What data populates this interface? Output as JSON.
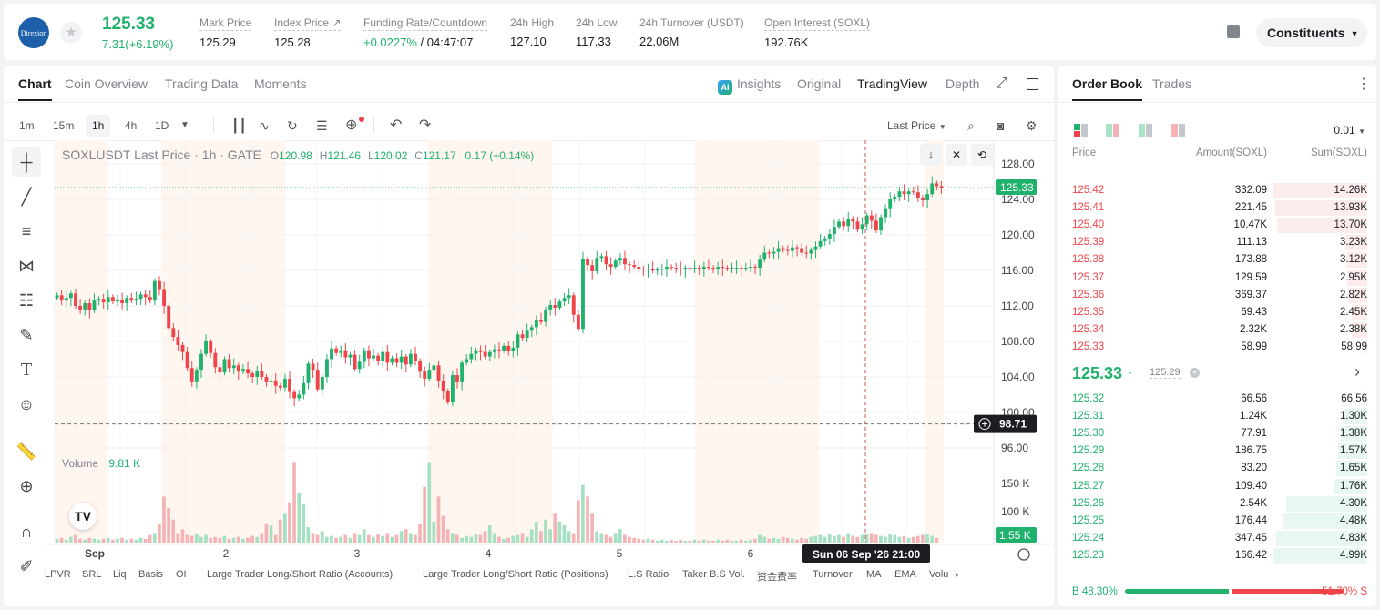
{
  "header": {
    "logo_text": "Direxion",
    "price": "125.33",
    "change": "7.31(+6.19%)",
    "stats": [
      {
        "label": "Mark Price",
        "value": "125.29"
      },
      {
        "label": "Index Price ↗",
        "value": "125.28"
      },
      {
        "label": "Funding Rate/Countdown",
        "value": "+0.0227%",
        "value2": "/ 04:47:07"
      },
      {
        "label": "24h High",
        "value": "127.10"
      },
      {
        "label": "24h Low",
        "value": "117.33"
      },
      {
        "label": "24h Turnover (USDT)",
        "value": "22.06M"
      },
      {
        "label": "Open Interest (SOXL)",
        "value": "192.76K"
      }
    ],
    "constituents_label": "Constituents"
  },
  "chart_panel": {
    "tabs": [
      "Chart",
      "Coin Overview",
      "Trading Data",
      "Moments"
    ],
    "right_tabs": [
      "Insights",
      "Original",
      "TradingView",
      "Depth"
    ],
    "ai_badge": "AI",
    "timeframes": [
      "1m",
      "15m",
      "1h",
      "4h",
      "1D"
    ],
    "active_timeframe": "1h",
    "price_type": "Last Price",
    "legend": {
      "symbol": "SOXLUSDT Last Price · 1h · GATE",
      "o_label": "O",
      "o": "120.98",
      "h_label": "H",
      "h": "121.46",
      "l_label": "L",
      "l": "120.02",
      "c_label": "C",
      "c": "121.17",
      "chg": "0.17 (+0.14%)"
    },
    "volume_label": "Volume",
    "volume_value": "9.81 K",
    "indicators": [
      "LPVR",
      "SRL",
      "Liq",
      "Basis",
      "OI",
      "Large Trader Long/Short Ratio (Accounts)",
      "Large Trader Long/Short Ratio (Positions)",
      "L.S Ratio",
      "Taker B.S Vol.",
      "资金费率",
      "Turnover",
      "MA",
      "EMA",
      "Volu"
    ]
  },
  "chart_data": {
    "type": "candlestick",
    "price_axis": [
      "128.00",
      "124.00",
      "120.00",
      "116.00",
      "112.00",
      "108.00",
      "104.00",
      "100.00",
      "96.00"
    ],
    "volume_axis": [
      "150 K",
      "100 K",
      "50 K"
    ],
    "x_ticks": [
      "Sep",
      "2",
      "3",
      "4",
      "5",
      "6"
    ],
    "last_price_tag": "125.33",
    "crosshair_price_tag": "98.71",
    "volume_tag": "1.55 K",
    "crosshair_time": "Sun 06 Sep '26   21:00",
    "ylim": [
      96,
      130
    ],
    "closes": [
      113.2,
      112.6,
      112.9,
      113.4,
      112.0,
      111.6,
      112.3,
      111.5,
      112.6,
      112.8,
      112.4,
      113.0,
      112.5,
      112.7,
      112.3,
      112.9,
      112.6,
      112.8,
      113.3,
      113.0,
      112.6,
      114.8,
      113.9,
      112.0,
      109.5,
      108.5,
      107.6,
      106.8,
      105.0,
      103.4,
      104.8,
      106.6,
      108.0,
      106.7,
      105.1,
      104.5,
      106.0,
      105.0,
      105.3,
      104.6,
      104.9,
      104.4,
      104.0,
      104.7,
      104.0,
      103.4,
      103.6,
      103.0,
      102.8,
      103.8,
      102.3,
      101.6,
      102.0,
      103.3,
      105.5,
      104.8,
      102.6,
      104.0,
      106.0,
      107.2,
      106.7,
      107.0,
      106.2,
      106.5,
      104.9,
      105.7,
      107.0,
      106.1,
      106.4,
      105.8,
      106.8,
      105.6,
      106.1,
      105.6,
      106.3,
      105.4,
      106.6,
      105.8,
      104.6,
      103.8,
      104.8,
      105.3,
      103.5,
      102.4,
      101.2,
      104.2,
      103.4,
      105.6,
      106.0,
      106.6,
      107.0,
      106.8,
      106.3,
      106.8,
      107.1,
      107.0,
      107.5,
      106.9,
      107.3,
      108.8,
      108.4,
      109.2,
      109.6,
      110.4,
      110.2,
      111.6,
      112.1,
      111.8,
      112.5,
      112.9,
      113.2,
      111.0,
      109.4,
      117.3,
      116.6,
      115.9,
      117.4,
      117.6,
      116.7,
      116.4,
      117.1,
      117.4,
      116.7,
      116.6,
      116.4,
      116.2,
      116.1,
      116.2,
      116.0,
      116.1,
      116.2,
      116.4,
      116.3,
      116.2,
      116.1,
      116.3,
      116.2,
      116.3,
      116.2,
      116.4,
      116.3,
      116.2,
      116.4,
      116.3,
      116.2,
      116.3,
      116.3,
      116.2,
      116.3,
      116.4,
      116.3,
      117.2,
      118.0,
      117.9,
      118.1,
      118.5,
      118.3,
      118.2,
      118.6,
      118.5,
      118.0,
      117.9,
      118.3,
      118.7,
      119.3,
      119.6,
      120.1,
      120.9,
      121.5,
      121.0,
      121.8,
      121.5,
      120.6,
      121.2,
      122.2,
      121.6,
      120.5,
      122.0,
      122.9,
      124.0,
      124.3,
      124.9,
      124.6,
      124.9,
      124.8,
      124.2,
      123.9,
      124.6,
      125.8,
      125.5,
      125.33
    ],
    "volumes": [
      4,
      5,
      3,
      6,
      8,
      4,
      3,
      5,
      4,
      3,
      4,
      5,
      3,
      4,
      5,
      3,
      4,
      3,
      5,
      4,
      8,
      10,
      20,
      48,
      36,
      24,
      10,
      14,
      8,
      7,
      9,
      6,
      8,
      5,
      6,
      5,
      7,
      4,
      5,
      6,
      4,
      5,
      7,
      6,
      10,
      20,
      18,
      8,
      24,
      30,
      42,
      84,
      52,
      40,
      16,
      10,
      8,
      12,
      6,
      7,
      5,
      6,
      8,
      5,
      10,
      8,
      14,
      8,
      6,
      9,
      7,
      10,
      6,
      8,
      12,
      14,
      10,
      8,
      20,
      58,
      84,
      22,
      48,
      28,
      14,
      10,
      8,
      5,
      7,
      6,
      9,
      8,
      12,
      18,
      10,
      6,
      4,
      5,
      7,
      8,
      10,
      6,
      14,
      22,
      12,
      24,
      14,
      30,
      22,
      18,
      12,
      10,
      44,
      60,
      48,
      30,
      12,
      10,
      8,
      6,
      10,
      14,
      8,
      6,
      5,
      4,
      3,
      4,
      3,
      2,
      3,
      2,
      3,
      2,
      3,
      2,
      2,
      3,
      2,
      3,
      2,
      2,
      3,
      2,
      3,
      2,
      2,
      3,
      2,
      3,
      4,
      8,
      6,
      4,
      5,
      4,
      6,
      5,
      4,
      3,
      5,
      4,
      6,
      7,
      8,
      6,
      9,
      7,
      8,
      6,
      10,
      7,
      6,
      8,
      9,
      10,
      8,
      7,
      6,
      9,
      8,
      6,
      7,
      5,
      6,
      7,
      8,
      9,
      7,
      5
    ]
  },
  "orderbook": {
    "tabs": [
      "Order Book",
      "Trades"
    ],
    "precision": "0.01",
    "headers": [
      "Price",
      "Amount(SOXL)",
      "Sum(SOXL)"
    ],
    "asks": [
      {
        "p": "125.42",
        "a": "332.09",
        "s": "14.26K",
        "w": 1.0
      },
      {
        "p": "125.41",
        "a": "221.45",
        "s": "13.93K",
        "w": 0.98
      },
      {
        "p": "125.40",
        "a": "10.47K",
        "s": "13.70K",
        "w": 0.96
      },
      {
        "p": "125.39",
        "a": "111.13",
        "s": "3.23K",
        "w": 0.23
      },
      {
        "p": "125.38",
        "a": "173.88",
        "s": "3.12K",
        "w": 0.22
      },
      {
        "p": "125.37",
        "a": "129.59",
        "s": "2.95K",
        "w": 0.21
      },
      {
        "p": "125.36",
        "a": "369.37",
        "s": "2.82K",
        "w": 0.2
      },
      {
        "p": "125.35",
        "a": "69.43",
        "s": "2.45K",
        "w": 0.17
      },
      {
        "p": "125.34",
        "a": "2.32K",
        "s": "2.38K",
        "w": 0.17
      },
      {
        "p": "125.33",
        "a": "58.99",
        "s": "58.99",
        "w": 0.01
      }
    ],
    "mid_price": "125.33",
    "mid_mark": "125.29",
    "bids": [
      {
        "p": "125.32",
        "a": "66.56",
        "s": "66.56",
        "w": 0.01
      },
      {
        "p": "125.31",
        "a": "1.24K",
        "s": "1.30K",
        "w": 0.26
      },
      {
        "p": "125.30",
        "a": "77.91",
        "s": "1.38K",
        "w": 0.28
      },
      {
        "p": "125.29",
        "a": "186.75",
        "s": "1.57K",
        "w": 0.31
      },
      {
        "p": "125.28",
        "a": "83.20",
        "s": "1.65K",
        "w": 0.33
      },
      {
        "p": "125.27",
        "a": "109.40",
        "s": "1.76K",
        "w": 0.35
      },
      {
        "p": "125.26",
        "a": "2.54K",
        "s": "4.30K",
        "w": 0.86
      },
      {
        "p": "125.25",
        "a": "176.44",
        "s": "4.48K",
        "w": 0.9
      },
      {
        "p": "125.24",
        "a": "347.45",
        "s": "4.83K",
        "w": 0.97
      },
      {
        "p": "125.23",
        "a": "166.42",
        "s": "4.99K",
        "w": 1.0
      }
    ],
    "buy_ratio": "B 48.30%",
    "sell_ratio": "51.70% S",
    "buy_fraction": 0.483
  }
}
